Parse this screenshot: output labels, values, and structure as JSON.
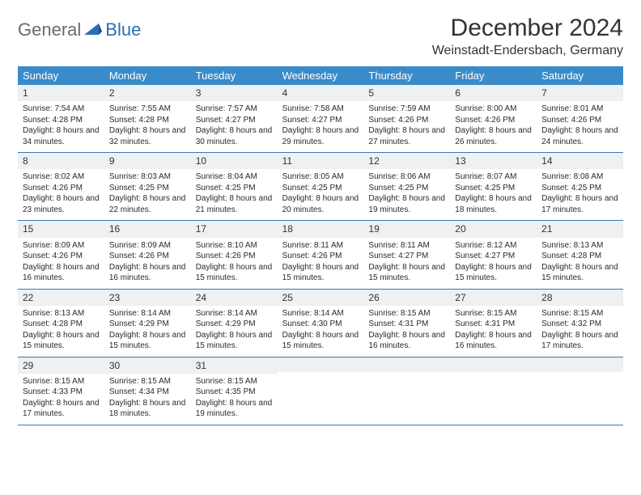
{
  "logo": {
    "part1": "General",
    "part2": "Blue"
  },
  "title": "December 2024",
  "location": "Weinstadt-Endersbach, Germany",
  "colors": {
    "header_bg": "#3a8bc9",
    "header_text": "#ffffff",
    "daynum_bg": "#eef0f1",
    "border": "#3a7ab0",
    "logo_gray": "#6a6a6a",
    "logo_blue": "#2d6fb4"
  },
  "day_labels": [
    "Sunday",
    "Monday",
    "Tuesday",
    "Wednesday",
    "Thursday",
    "Friday",
    "Saturday"
  ],
  "weeks": [
    [
      {
        "n": "1",
        "sunrise": "7:54 AM",
        "sunset": "4:28 PM",
        "dlh": "8",
        "dlm": "34"
      },
      {
        "n": "2",
        "sunrise": "7:55 AM",
        "sunset": "4:28 PM",
        "dlh": "8",
        "dlm": "32"
      },
      {
        "n": "3",
        "sunrise": "7:57 AM",
        "sunset": "4:27 PM",
        "dlh": "8",
        "dlm": "30"
      },
      {
        "n": "4",
        "sunrise": "7:58 AM",
        "sunset": "4:27 PM",
        "dlh": "8",
        "dlm": "29"
      },
      {
        "n": "5",
        "sunrise": "7:59 AM",
        "sunset": "4:26 PM",
        "dlh": "8",
        "dlm": "27"
      },
      {
        "n": "6",
        "sunrise": "8:00 AM",
        "sunset": "4:26 PM",
        "dlh": "8",
        "dlm": "26"
      },
      {
        "n": "7",
        "sunrise": "8:01 AM",
        "sunset": "4:26 PM",
        "dlh": "8",
        "dlm": "24"
      }
    ],
    [
      {
        "n": "8",
        "sunrise": "8:02 AM",
        "sunset": "4:26 PM",
        "dlh": "8",
        "dlm": "23"
      },
      {
        "n": "9",
        "sunrise": "8:03 AM",
        "sunset": "4:25 PM",
        "dlh": "8",
        "dlm": "22"
      },
      {
        "n": "10",
        "sunrise": "8:04 AM",
        "sunset": "4:25 PM",
        "dlh": "8",
        "dlm": "21"
      },
      {
        "n": "11",
        "sunrise": "8:05 AM",
        "sunset": "4:25 PM",
        "dlh": "8",
        "dlm": "20"
      },
      {
        "n": "12",
        "sunrise": "8:06 AM",
        "sunset": "4:25 PM",
        "dlh": "8",
        "dlm": "19"
      },
      {
        "n": "13",
        "sunrise": "8:07 AM",
        "sunset": "4:25 PM",
        "dlh": "8",
        "dlm": "18"
      },
      {
        "n": "14",
        "sunrise": "8:08 AM",
        "sunset": "4:25 PM",
        "dlh": "8",
        "dlm": "17"
      }
    ],
    [
      {
        "n": "15",
        "sunrise": "8:09 AM",
        "sunset": "4:26 PM",
        "dlh": "8",
        "dlm": "16"
      },
      {
        "n": "16",
        "sunrise": "8:09 AM",
        "sunset": "4:26 PM",
        "dlh": "8",
        "dlm": "16"
      },
      {
        "n": "17",
        "sunrise": "8:10 AM",
        "sunset": "4:26 PM",
        "dlh": "8",
        "dlm": "15"
      },
      {
        "n": "18",
        "sunrise": "8:11 AM",
        "sunset": "4:26 PM",
        "dlh": "8",
        "dlm": "15"
      },
      {
        "n": "19",
        "sunrise": "8:11 AM",
        "sunset": "4:27 PM",
        "dlh": "8",
        "dlm": "15"
      },
      {
        "n": "20",
        "sunrise": "8:12 AM",
        "sunset": "4:27 PM",
        "dlh": "8",
        "dlm": "15"
      },
      {
        "n": "21",
        "sunrise": "8:13 AM",
        "sunset": "4:28 PM",
        "dlh": "8",
        "dlm": "15"
      }
    ],
    [
      {
        "n": "22",
        "sunrise": "8:13 AM",
        "sunset": "4:28 PM",
        "dlh": "8",
        "dlm": "15"
      },
      {
        "n": "23",
        "sunrise": "8:14 AM",
        "sunset": "4:29 PM",
        "dlh": "8",
        "dlm": "15"
      },
      {
        "n": "24",
        "sunrise": "8:14 AM",
        "sunset": "4:29 PM",
        "dlh": "8",
        "dlm": "15"
      },
      {
        "n": "25",
        "sunrise": "8:14 AM",
        "sunset": "4:30 PM",
        "dlh": "8",
        "dlm": "15"
      },
      {
        "n": "26",
        "sunrise": "8:15 AM",
        "sunset": "4:31 PM",
        "dlh": "8",
        "dlm": "16"
      },
      {
        "n": "27",
        "sunrise": "8:15 AM",
        "sunset": "4:31 PM",
        "dlh": "8",
        "dlm": "16"
      },
      {
        "n": "28",
        "sunrise": "8:15 AM",
        "sunset": "4:32 PM",
        "dlh": "8",
        "dlm": "17"
      }
    ],
    [
      {
        "n": "29",
        "sunrise": "8:15 AM",
        "sunset": "4:33 PM",
        "dlh": "8",
        "dlm": "17"
      },
      {
        "n": "30",
        "sunrise": "8:15 AM",
        "sunset": "4:34 PM",
        "dlh": "8",
        "dlm": "18"
      },
      {
        "n": "31",
        "sunrise": "8:15 AM",
        "sunset": "4:35 PM",
        "dlh": "8",
        "dlm": "19"
      },
      null,
      null,
      null,
      null
    ]
  ]
}
